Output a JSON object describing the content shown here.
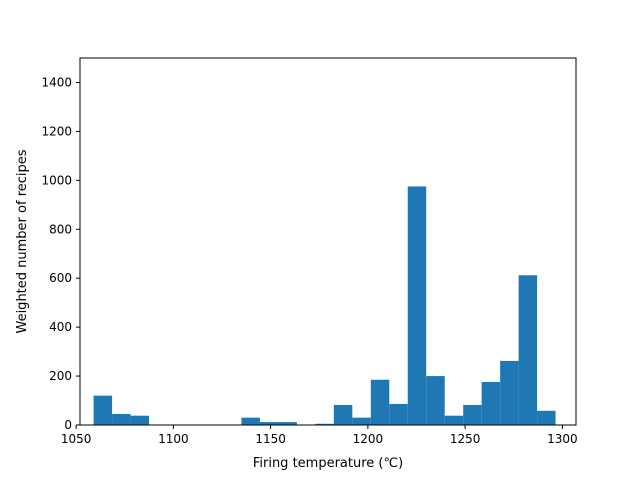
{
  "chart_data": {
    "type": "bar",
    "subtype": "histogram",
    "xlabel": "Firing temperature (℃)",
    "ylabel": "Weighted number of recipes",
    "xlim": [
      1052,
      1307
    ],
    "ylim": [
      0,
      1500
    ],
    "xticks": [
      1050,
      1100,
      1150,
      1200,
      1250,
      1300
    ],
    "yticks": [
      0,
      200,
      400,
      600,
      800,
      1000,
      1200,
      1400
    ],
    "grid": false,
    "bar_color": "#1f77b4",
    "bin_width": 9.5,
    "bins": [
      {
        "x0": 1059.0,
        "x1": 1068.5,
        "value": 120
      },
      {
        "x0": 1068.5,
        "x1": 1078.0,
        "value": 45
      },
      {
        "x0": 1078.0,
        "x1": 1087.5,
        "value": 38
      },
      {
        "x0": 1087.5,
        "x1": 1097.0,
        "value": 0
      },
      {
        "x0": 1097.0,
        "x1": 1106.5,
        "value": 0
      },
      {
        "x0": 1106.5,
        "x1": 1116.0,
        "value": 0
      },
      {
        "x0": 1116.0,
        "x1": 1125.5,
        "value": 0
      },
      {
        "x0": 1125.5,
        "x1": 1135.0,
        "value": 0
      },
      {
        "x0": 1135.0,
        "x1": 1144.5,
        "value": 30
      },
      {
        "x0": 1144.5,
        "x1": 1154.0,
        "value": 12
      },
      {
        "x0": 1154.0,
        "x1": 1163.5,
        "value": 12
      },
      {
        "x0": 1163.5,
        "x1": 1173.0,
        "value": 0
      },
      {
        "x0": 1173.0,
        "x1": 1182.5,
        "value": 5
      },
      {
        "x0": 1182.5,
        "x1": 1192.0,
        "value": 82
      },
      {
        "x0": 1192.0,
        "x1": 1201.5,
        "value": 30
      },
      {
        "x0": 1201.5,
        "x1": 1211.0,
        "value": 185
      },
      {
        "x0": 1211.0,
        "x1": 1220.5,
        "value": 86
      },
      {
        "x0": 1220.5,
        "x1": 1230.0,
        "value": 975
      },
      {
        "x0": 1230.0,
        "x1": 1239.5,
        "value": 200
      },
      {
        "x0": 1239.5,
        "x1": 1249.0,
        "value": 38
      },
      {
        "x0": 1249.0,
        "x1": 1258.5,
        "value": 82
      },
      {
        "x0": 1258.5,
        "x1": 1268.0,
        "value": 176
      },
      {
        "x0": 1268.0,
        "x1": 1277.5,
        "value": 262
      },
      {
        "x0": 1277.5,
        "x1": 1287.0,
        "value": 612
      },
      {
        "x0": 1287.0,
        "x1": 1296.5,
        "value": 58
      }
    ]
  }
}
